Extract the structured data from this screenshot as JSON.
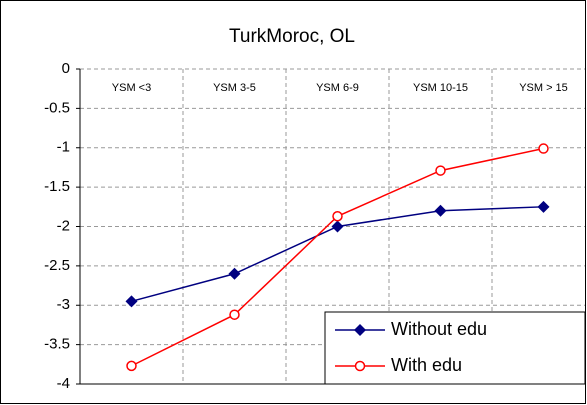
{
  "chart_data": {
    "type": "line",
    "title": "TurkMoroc, OL",
    "categories": [
      "YSM <3",
      "YSM 3-5",
      "YSM 6-9",
      "YSM 10-15",
      "YSM > 15"
    ],
    "series": [
      {
        "name": "Without edu",
        "color": "#000080",
        "marker": "diamond",
        "values": [
          -2.95,
          -2.6,
          -2.0,
          -1.8,
          -1.75
        ]
      },
      {
        "name": "With edu",
        "color": "#ff0000",
        "marker": "open-circle",
        "values": [
          -3.77,
          -3.12,
          -1.87,
          -1.29,
          -1.01
        ]
      }
    ],
    "ylim": [
      -4,
      0
    ],
    "yticks": [
      0,
      -0.5,
      -1,
      -1.5,
      -2,
      -2.5,
      -3,
      -3.5,
      -4
    ],
    "grid": true,
    "legend": "lower right"
  }
}
